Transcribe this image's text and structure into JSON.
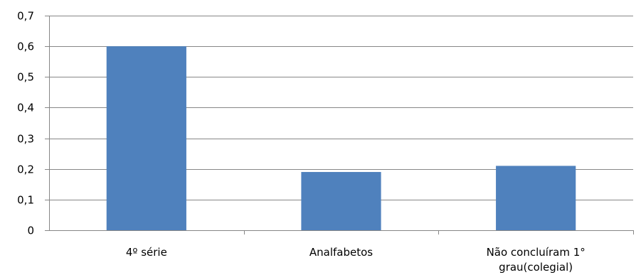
{
  "chart_data": {
    "type": "bar",
    "categories": [
      [
        "4º série"
      ],
      [
        "Analfabetos"
      ],
      [
        "Não concluíram 1°",
        "grau(colegial)"
      ]
    ],
    "values": [
      0.6,
      0.19,
      0.21
    ],
    "yticks": [
      "0",
      "0,1",
      "0,2",
      "0,3",
      "0,4",
      "0,5",
      "0,6",
      "0,7"
    ],
    "ylim": [
      0,
      0.7
    ],
    "grid": true,
    "legend": "none",
    "bar_color": "#4f81bd",
    "grid_color": "#878787",
    "axis_color": "#878787"
  }
}
